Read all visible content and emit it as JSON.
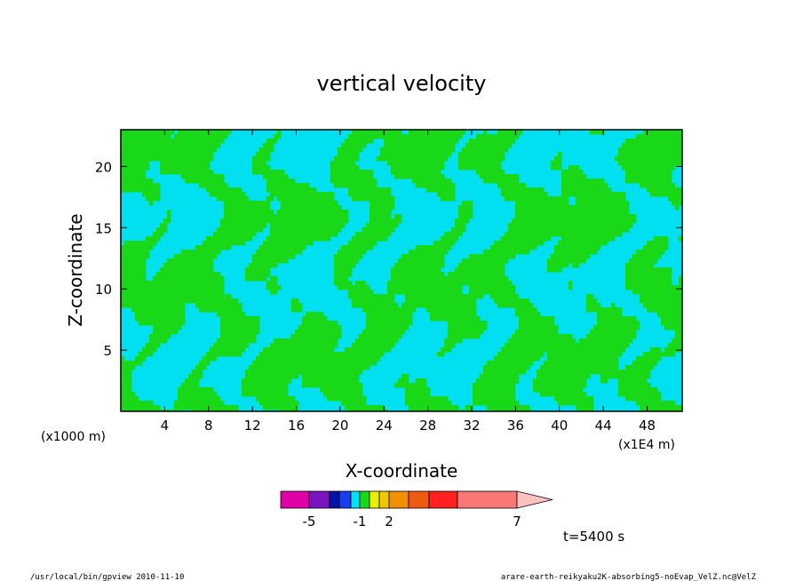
{
  "chart_data": {
    "type": "heatmap",
    "title": "vertical velocity",
    "xlabel": "X-coordinate",
    "ylabel": "Z-coordinate",
    "x_unit": "(x1E4 m)",
    "y_unit": "(x1000 m)",
    "xlim": [
      0,
      51.2
    ],
    "ylim": [
      0,
      23
    ],
    "x_ticks": [
      4,
      8,
      12,
      16,
      20,
      24,
      28,
      32,
      36,
      40,
      44,
      48
    ],
    "y_ticks": [
      5,
      10,
      15,
      20
    ],
    "x_tick_labels": [
      "4",
      "8",
      "12",
      "16",
      "20",
      "24",
      "28",
      "32",
      "36",
      "40",
      "44",
      "48"
    ],
    "y_tick_labels": [
      "5",
      "10",
      "15",
      "20"
    ],
    "colorbar": {
      "levels": [
        -6,
        -5,
        -4,
        -3,
        -2,
        -1,
        0,
        1,
        2,
        3,
        4,
        5,
        7,
        9,
        15
      ],
      "colors": [
        "#e000a8",
        "#7a14c0",
        "#0012a8",
        "#1a3cf0",
        "#00e0f0",
        "#18d818",
        "#e8f000",
        "#f0c800",
        "#f09000",
        "#f05a10",
        "#ff2020",
        "#f87878"
      ],
      "extend_color": "#ffc0c0",
      "tick_labels": [
        {
          "label": "-5",
          "level": -5
        },
        {
          "label": "-1",
          "level": -1
        },
        {
          "label": "2",
          "level": 2
        },
        {
          "label": "7",
          "level": 7
        }
      ]
    },
    "grid": false
  },
  "time_label": "t=5400 s",
  "footer": {
    "left": "/usr/local/bin/gpview  2010-11-10",
    "right": "arare-earth-reikyaku2K-absorbing5-noEvap_VelZ.nc@VelZ"
  }
}
